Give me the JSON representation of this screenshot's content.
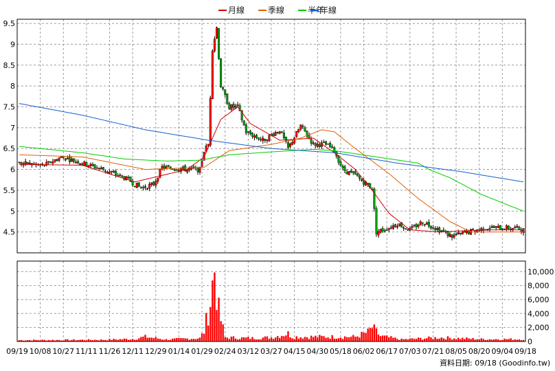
{
  "chart_data": {
    "type": "candlestick+line+bar",
    "legend": {
      "placement": "top-center",
      "items": [
        {
          "label": "月線",
          "color": "#cc0000"
        },
        {
          "label": "季線",
          "color": "#e06000"
        },
        {
          "label": "半年",
          "color": "#00cc00"
        },
        {
          "label": "年線",
          "color": "#1060d0"
        }
      ]
    },
    "price_axis": {
      "ticks": [
        "9.5",
        "9",
        "8.5",
        "8",
        "7.5",
        "7",
        "6.5",
        "6",
        "5.5",
        "5",
        "4.5"
      ],
      "min": 4.0,
      "max": 9.6
    },
    "volume_axis": {
      "ticks": [
        "10,000",
        "8,000",
        "6,000",
        "4,000",
        "2,000",
        "0"
      ],
      "min": 0,
      "max": 11500
    },
    "x_labels": [
      "09/19",
      "10/08",
      "10/27",
      "11/11",
      "11/26",
      "12/11",
      "12/29",
      "01/14",
      "01/29",
      "02/24",
      "03/12",
      "03/27",
      "04/15",
      "04/30",
      "05/18",
      "06/02",
      "06/17",
      "07/03",
      "07/21",
      "08/05",
      "08/20",
      "09/04",
      "09/18"
    ],
    "grid": true,
    "up_color": "#ff0000",
    "down_color": "#00a000",
    "volume_color": "#ff0000",
    "price_ctrl": [
      [
        0,
        6.15
      ],
      [
        12,
        6.1
      ],
      [
        20,
        6.3
      ],
      [
        30,
        6.15
      ],
      [
        40,
        6.0
      ],
      [
        52,
        5.75
      ],
      [
        58,
        5.55
      ],
      [
        64,
        5.65
      ],
      [
        68,
        6.05
      ],
      [
        80,
        6.0
      ],
      [
        86,
        6.0
      ],
      [
        88,
        6.45
      ],
      [
        90,
        6.6
      ],
      [
        92,
        8.9
      ],
      [
        94,
        9.4
      ],
      [
        96,
        8.0
      ],
      [
        100,
        7.5
      ],
      [
        104,
        7.5
      ],
      [
        108,
        6.9
      ],
      [
        116,
        6.7
      ],
      [
        124,
        6.95
      ],
      [
        128,
        6.5
      ],
      [
        134,
        7.05
      ],
      [
        140,
        6.6
      ],
      [
        146,
        6.6
      ],
      [
        150,
        6.45
      ],
      [
        154,
        6.0
      ],
      [
        160,
        5.85
      ],
      [
        168,
        5.55
      ],
      [
        170,
        4.5
      ],
      [
        176,
        4.6
      ],
      [
        180,
        4.7
      ],
      [
        186,
        4.55
      ],
      [
        192,
        4.75
      ],
      [
        198,
        4.6
      ],
      [
        206,
        4.4
      ],
      [
        214,
        4.5
      ],
      [
        222,
        4.6
      ],
      [
        236,
        4.6
      ],
      [
        240,
        4.55
      ]
    ],
    "vol_ctrl": [
      [
        0,
        200
      ],
      [
        40,
        250
      ],
      [
        55,
        400
      ],
      [
        60,
        700
      ],
      [
        70,
        300
      ],
      [
        86,
        500
      ],
      [
        88,
        1500
      ],
      [
        91,
        6000
      ],
      [
        93,
        11000
      ],
      [
        95,
        4500
      ],
      [
        98,
        600
      ],
      [
        110,
        500
      ],
      [
        120,
        600
      ],
      [
        128,
        1200
      ],
      [
        130,
        700
      ],
      [
        160,
        700
      ],
      [
        166,
        1400
      ],
      [
        168,
        2100
      ],
      [
        172,
        800
      ],
      [
        182,
        300
      ],
      [
        200,
        600
      ],
      [
        220,
        350
      ],
      [
        240,
        350
      ]
    ],
    "ma_month": [
      [
        0,
        6.12
      ],
      [
        30,
        6.1
      ],
      [
        55,
        5.7
      ],
      [
        80,
        6.0
      ],
      [
        88,
        6.3
      ],
      [
        96,
        7.2
      ],
      [
        104,
        7.5
      ],
      [
        110,
        7.1
      ],
      [
        124,
        6.7
      ],
      [
        140,
        6.75
      ],
      [
        150,
        6.4
      ],
      [
        160,
        6.0
      ],
      [
        168,
        5.5
      ],
      [
        176,
        4.95
      ],
      [
        186,
        4.55
      ],
      [
        200,
        4.5
      ],
      [
        220,
        4.55
      ],
      [
        240,
        4.55
      ]
    ],
    "ma_quarter": [
      [
        0,
        6.35
      ],
      [
        30,
        6.3
      ],
      [
        60,
        6.0
      ],
      [
        88,
        6.05
      ],
      [
        100,
        6.45
      ],
      [
        120,
        6.6
      ],
      [
        134,
        6.75
      ],
      [
        144,
        6.95
      ],
      [
        150,
        6.9
      ],
      [
        160,
        6.5
      ],
      [
        176,
        5.9
      ],
      [
        190,
        5.3
      ],
      [
        205,
        4.75
      ],
      [
        215,
        4.5
      ],
      [
        240,
        4.5
      ]
    ],
    "ma_half": [
      [
        0,
        6.55
      ],
      [
        30,
        6.4
      ],
      [
        50,
        6.25
      ],
      [
        70,
        6.2
      ],
      [
        86,
        6.22
      ],
      [
        100,
        6.35
      ],
      [
        120,
        6.42
      ],
      [
        140,
        6.48
      ],
      [
        150,
        6.45
      ],
      [
        170,
        6.3
      ],
      [
        190,
        6.15
      ],
      [
        195,
        6.0
      ],
      [
        205,
        5.8
      ],
      [
        220,
        5.4
      ],
      [
        240,
        5.0
      ]
    ],
    "ma_year": [
      [
        0,
        7.58
      ],
      [
        30,
        7.3
      ],
      [
        60,
        6.95
      ],
      [
        90,
        6.7
      ],
      [
        120,
        6.5
      ],
      [
        150,
        6.4
      ],
      [
        180,
        6.15
      ],
      [
        210,
        5.95
      ],
      [
        240,
        5.7
      ]
    ]
  }
}
